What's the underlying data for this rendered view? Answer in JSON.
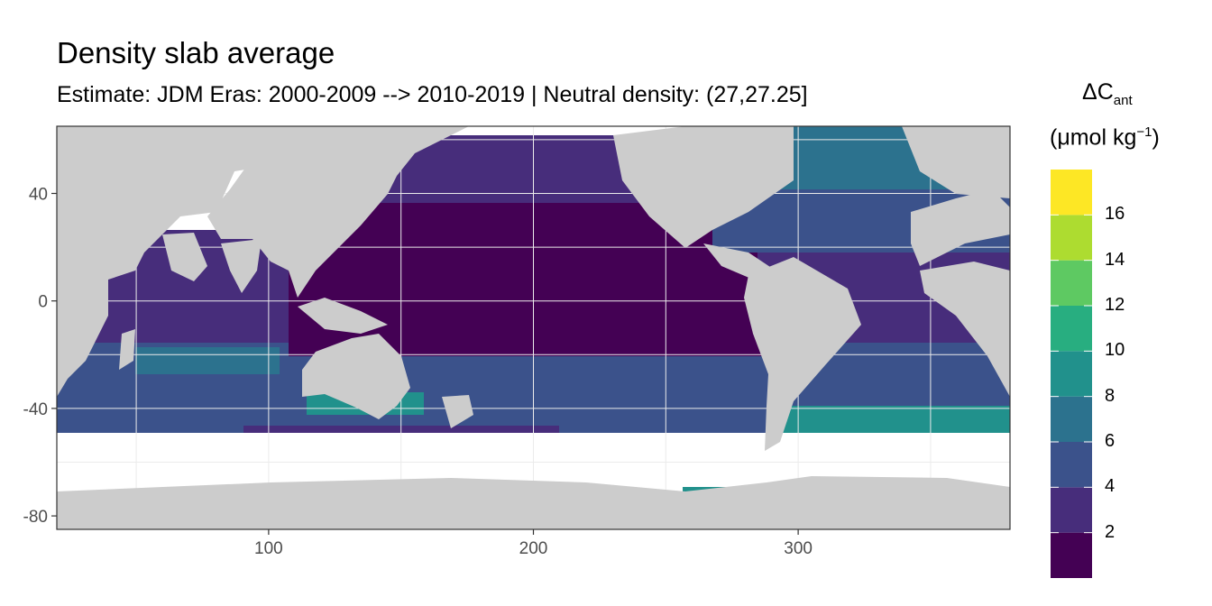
{
  "title": "Density slab average",
  "subtitle": "Estimate: JDM Eras: 2000-2009 --> 2010-2019 | Neutral density: (27,27.25]",
  "legend": {
    "symbol": "ΔC",
    "symbol_sub": "ant",
    "unit_open": "(μmol kg",
    "unit_sup": "−1",
    "unit_close": ")",
    "tick_labels": [
      "2",
      "4",
      "6",
      "8",
      "10",
      "12",
      "14",
      "16"
    ],
    "bins": [
      {
        "range": [
          0,
          2
        ],
        "color": "#440154"
      },
      {
        "range": [
          2,
          4
        ],
        "color": "#472D7B"
      },
      {
        "range": [
          4,
          6
        ],
        "color": "#3B528B"
      },
      {
        "range": [
          6,
          8
        ],
        "color": "#2C728E"
      },
      {
        "range": [
          8,
          10
        ],
        "color": "#21918C"
      },
      {
        "range": [
          10,
          12
        ],
        "color": "#28AE80"
      },
      {
        "range": [
          12,
          14
        ],
        "color": "#5EC962"
      },
      {
        "range": [
          14,
          16
        ],
        "color": "#ADDC30"
      },
      {
        "range": [
          16,
          18
        ],
        "color": "#FDE725"
      }
    ]
  },
  "chart_data": {
    "type": "heatmap",
    "xlim": [
      20,
      380
    ],
    "ylim": [
      -85,
      65
    ],
    "x_ticks": [
      100,
      200,
      300
    ],
    "x_tick_labels": [
      "100",
      "200",
      "300"
    ],
    "y_ticks": [
      40,
      0,
      -40,
      -80
    ],
    "y_tick_labels": [
      "40",
      "0",
      "-40",
      "-80"
    ],
    "grid": true,
    "colors": {
      "land": "#CCCCCC",
      "no_data": "#FFFFFF",
      "frame": "#333333",
      "grid": "#EBEBEB"
    },
    "legend_placement": "right"
  }
}
